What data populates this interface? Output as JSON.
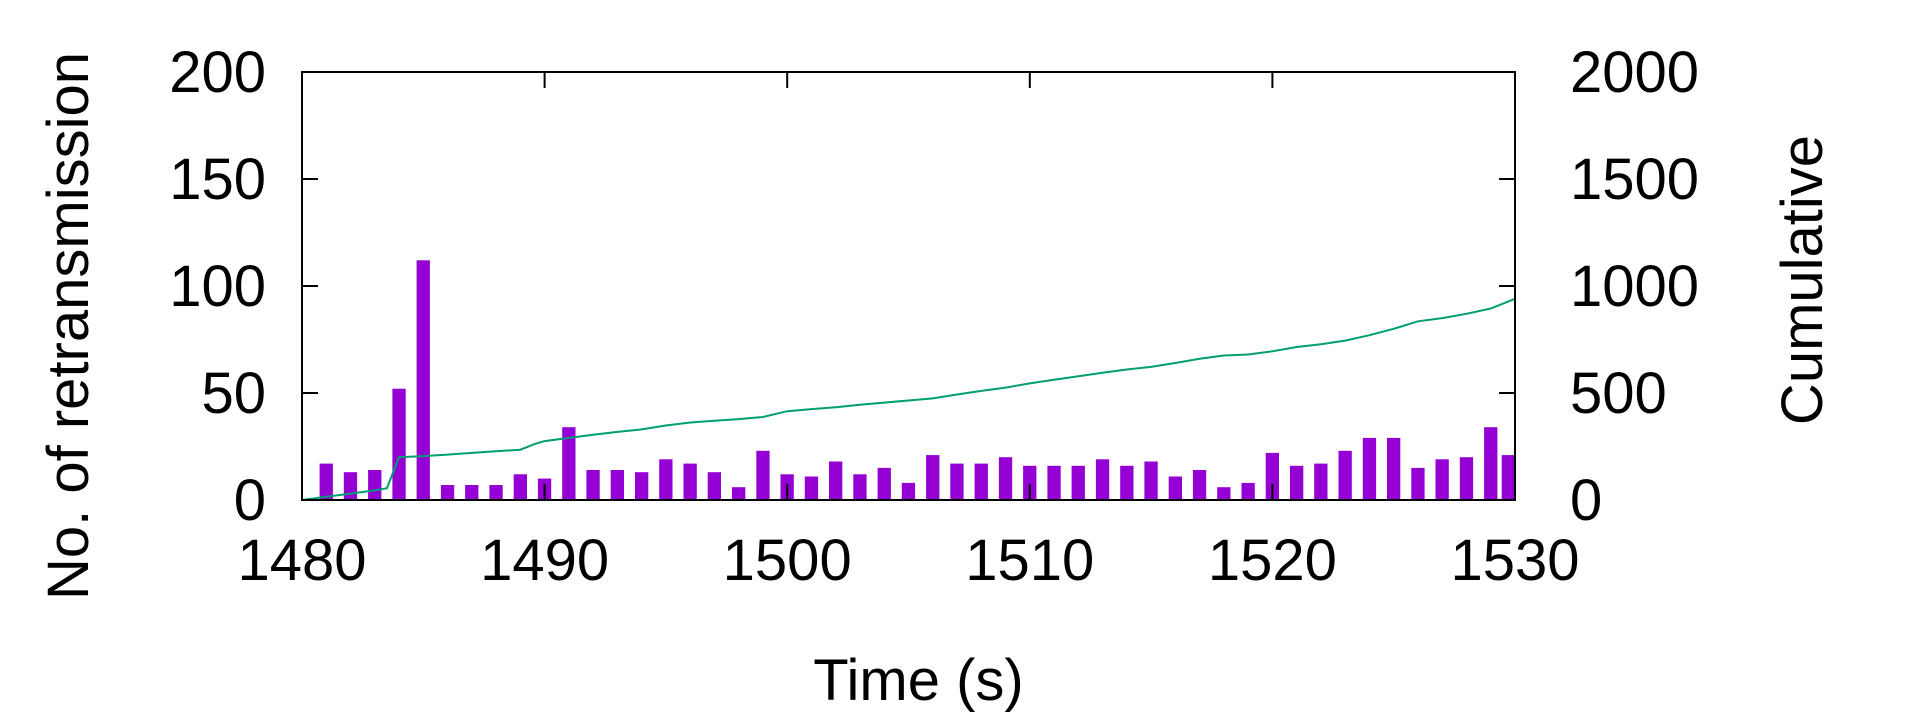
{
  "chart_data": {
    "type": "bar",
    "title": "",
    "xlabel": "Time (s)",
    "ylabel": "No. of retransmission",
    "y2label": "Cumulative",
    "xlim": [
      1480,
      1530
    ],
    "ylim": [
      0,
      200
    ],
    "y2lim": [
      0,
      2000
    ],
    "x_ticks": [
      1480,
      1490,
      1500,
      1510,
      1520,
      1530
    ],
    "y_ticks": [
      0,
      50,
      100,
      150,
      200
    ],
    "y2_ticks": [
      0,
      500,
      1000,
      1500,
      2000
    ],
    "grid": false,
    "colors": {
      "bars": "#9400d3",
      "line": "#009e73",
      "axis": "#000000"
    },
    "series": [
      {
        "name": "No. of retransmission",
        "type": "bar",
        "axis": "left",
        "x": [
          1480,
          1481,
          1482,
          1483,
          1484,
          1485,
          1486,
          1487,
          1488,
          1489,
          1490,
          1491,
          1492,
          1493,
          1494,
          1495,
          1496,
          1497,
          1498,
          1499,
          1500,
          1501,
          1502,
          1503,
          1504,
          1505,
          1506,
          1507,
          1508,
          1509,
          1510,
          1511,
          1512,
          1513,
          1514,
          1515,
          1516,
          1517,
          1518,
          1519,
          1520,
          1521,
          1522,
          1523,
          1524,
          1525,
          1526,
          1527,
          1528,
          1529,
          1530
        ],
        "values": [
          0,
          17,
          13,
          14,
          52,
          112,
          7,
          7,
          7,
          12,
          10,
          34,
          14,
          14,
          13,
          19,
          17,
          13,
          6,
          23,
          12,
          11,
          18,
          12,
          15,
          8,
          21,
          17,
          17,
          20,
          16,
          16,
          16,
          19,
          16,
          18,
          11,
          14,
          6,
          8,
          22,
          16,
          17,
          23,
          29,
          29,
          15,
          19,
          20,
          34,
          21
        ]
      },
      {
        "name": "Cumulative",
        "type": "line",
        "axis": "right",
        "x": [
          1480,
          1481,
          1482,
          1483,
          1483.5,
          1484,
          1485,
          1486,
          1487,
          1488,
          1489,
          1489.6,
          1490,
          1491,
          1492,
          1493,
          1494,
          1495,
          1496,
          1497,
          1498,
          1499,
          1500,
          1501,
          1502,
          1503,
          1504,
          1505,
          1506,
          1507,
          1508,
          1509,
          1510,
          1511,
          1512,
          1513,
          1514,
          1515,
          1516,
          1517,
          1518,
          1519,
          1520,
          1521,
          1522,
          1523,
          1524,
          1525,
          1526,
          1527,
          1528,
          1529,
          1530
        ],
        "values": [
          0,
          15,
          30,
          45,
          55,
          200,
          205,
          212,
          220,
          228,
          235,
          262,
          275,
          290,
          305,
          318,
          330,
          348,
          362,
          370,
          378,
          388,
          415,
          425,
          433,
          445,
          455,
          465,
          475,
          493,
          510,
          525,
          545,
          562,
          578,
          595,
          610,
          622,
          640,
          660,
          675,
          680,
          695,
          715,
          728,
          745,
          770,
          800,
          835,
          850,
          870,
          895,
          940
        ]
      }
    ]
  }
}
